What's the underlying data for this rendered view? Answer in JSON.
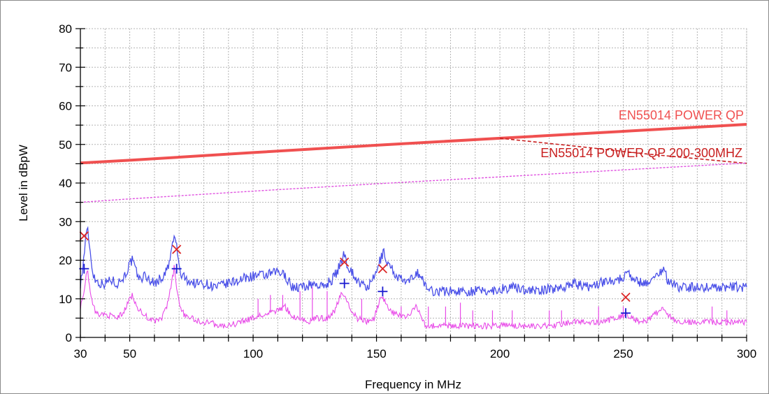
{
  "chart_data": {
    "type": "line",
    "xlabel": "Frequency in MHz",
    "ylabel": "Level in dBpW",
    "xlim": [
      30,
      300
    ],
    "ylim": [
      0,
      80
    ],
    "x_ticks": [
      30,
      50,
      100,
      150,
      200,
      250,
      300
    ],
    "y_ticks": [
      0,
      10,
      20,
      30,
      40,
      50,
      60,
      70,
      80
    ],
    "grid": true,
    "limit_lines": [
      {
        "name": "EN55014 POWER QP",
        "color": "#f05050",
        "style": "solid",
        "points": [
          [
            30,
            45.2
          ],
          [
            50,
            45.9
          ],
          [
            100,
            47.9
          ],
          [
            150,
            49.8
          ],
          [
            200,
            51.6
          ],
          [
            250,
            53.4
          ],
          [
            300,
            55.2
          ]
        ]
      },
      {
        "name": "EN55014 POWER QP 200-300MHZ",
        "color": "#c81e1e",
        "style": "dashed",
        "points": [
          [
            200,
            51.6
          ],
          [
            230,
            49.6
          ],
          [
            260,
            47.5
          ],
          [
            300,
            45.1
          ]
        ]
      },
      {
        "name": "",
        "color": "#e050e0",
        "style": "dotted",
        "points": [
          [
            30,
            35.0
          ],
          [
            50,
            35.9
          ],
          [
            100,
            37.9
          ],
          [
            150,
            39.8
          ],
          [
            200,
            41.6
          ],
          [
            250,
            43.4
          ],
          [
            300,
            45.2
          ]
        ]
      }
    ],
    "series": [
      {
        "color": "#4a50e8",
        "points": [
          [
            30,
            14
          ],
          [
            31,
            18
          ],
          [
            32,
            25
          ],
          [
            33,
            28
          ],
          [
            34,
            22
          ],
          [
            35,
            17
          ],
          [
            36,
            15
          ],
          [
            38,
            14
          ],
          [
            40,
            14
          ],
          [
            42,
            15
          ],
          [
            45,
            14
          ],
          [
            48,
            16
          ],
          [
            50,
            19
          ],
          [
            51,
            20
          ],
          [
            52,
            18
          ],
          [
            54,
            15
          ],
          [
            56,
            16
          ],
          [
            58,
            15
          ],
          [
            60,
            14
          ],
          [
            62,
            15
          ],
          [
            64,
            16
          ],
          [
            66,
            19
          ],
          [
            67,
            23
          ],
          [
            68,
            26
          ],
          [
            69,
            24
          ],
          [
            70,
            18
          ],
          [
            71,
            16
          ],
          [
            73,
            15
          ],
          [
            76,
            14
          ],
          [
            80,
            14
          ],
          [
            85,
            13
          ],
          [
            90,
            14
          ],
          [
            95,
            15
          ],
          [
            100,
            16
          ],
          [
            105,
            16
          ],
          [
            110,
            17
          ],
          [
            113,
            16
          ],
          [
            116,
            13
          ],
          [
            120,
            13
          ],
          [
            125,
            14
          ],
          [
            128,
            13
          ],
          [
            132,
            15
          ],
          [
            134,
            17
          ],
          [
            136,
            20
          ],
          [
            137,
            22
          ],
          [
            138,
            19
          ],
          [
            140,
            17
          ],
          [
            143,
            14
          ],
          [
            146,
            13
          ],
          [
            148,
            14
          ],
          [
            150,
            17
          ],
          [
            152,
            21
          ],
          [
            153,
            22
          ],
          [
            154,
            20
          ],
          [
            156,
            18
          ],
          [
            158,
            16
          ],
          [
            160,
            15
          ],
          [
            163,
            14
          ],
          [
            166,
            17
          ],
          [
            168,
            16
          ],
          [
            170,
            13
          ],
          [
            173,
            12
          ],
          [
            178,
            12
          ],
          [
            185,
            12
          ],
          [
            195,
            12
          ],
          [
            205,
            13
          ],
          [
            215,
            12
          ],
          [
            225,
            13
          ],
          [
            230,
            14
          ],
          [
            235,
            13
          ],
          [
            240,
            14
          ],
          [
            245,
            15
          ],
          [
            250,
            15
          ],
          [
            251,
            18
          ],
          [
            252,
            17
          ],
          [
            254,
            15
          ],
          [
            258,
            14
          ],
          [
            262,
            15
          ],
          [
            265,
            17
          ],
          [
            266,
            18
          ],
          [
            268,
            15
          ],
          [
            272,
            13
          ],
          [
            280,
            13
          ],
          [
            290,
            13
          ],
          [
            300,
            13
          ]
        ]
      },
      {
        "color": "#e84ae8",
        "points": [
          [
            30,
            8
          ],
          [
            31,
            10
          ],
          [
            32,
            15
          ],
          [
            33,
            17
          ],
          [
            34,
            12
          ],
          [
            35,
            8
          ],
          [
            37,
            6
          ],
          [
            40,
            6
          ],
          [
            45,
            5
          ],
          [
            48,
            7
          ],
          [
            50,
            10
          ],
          [
            51,
            11
          ],
          [
            53,
            8
          ],
          [
            55,
            6
          ],
          [
            58,
            5
          ],
          [
            60,
            4
          ],
          [
            63,
            5
          ],
          [
            65,
            8
          ],
          [
            67,
            14
          ],
          [
            68,
            18
          ],
          [
            69,
            13
          ],
          [
            70,
            9
          ],
          [
            72,
            6
          ],
          [
            75,
            5
          ],
          [
            78,
            4
          ],
          [
            82,
            4
          ],
          [
            86,
            3
          ],
          [
            90,
            3
          ],
          [
            95,
            4
          ],
          [
            100,
            5
          ],
          [
            105,
            6
          ],
          [
            110,
            7
          ],
          [
            113,
            8
          ],
          [
            115,
            6
          ],
          [
            118,
            5
          ],
          [
            122,
            4
          ],
          [
            126,
            5
          ],
          [
            130,
            5
          ],
          [
            133,
            7
          ],
          [
            135,
            10
          ],
          [
            136,
            12
          ],
          [
            137,
            11
          ],
          [
            139,
            8
          ],
          [
            142,
            5
          ],
          [
            146,
            4
          ],
          [
            149,
            5
          ],
          [
            151,
            9
          ],
          [
            152,
            11
          ],
          [
            153,
            10
          ],
          [
            155,
            7
          ],
          [
            158,
            6
          ],
          [
            162,
            5
          ],
          [
            165,
            7
          ],
          [
            166,
            8
          ],
          [
            168,
            6
          ],
          [
            170,
            3
          ],
          [
            173,
            3
          ],
          [
            180,
            3
          ],
          [
            190,
            3
          ],
          [
            200,
            3
          ],
          [
            210,
            3
          ],
          [
            220,
            3
          ],
          [
            230,
            4
          ],
          [
            240,
            4
          ],
          [
            248,
            5
          ],
          [
            251,
            6
          ],
          [
            253,
            5
          ],
          [
            258,
            4
          ],
          [
            263,
            6
          ],
          [
            266,
            8
          ],
          [
            268,
            6
          ],
          [
            272,
            4
          ],
          [
            280,
            4
          ],
          [
            290,
            4
          ],
          [
            300,
            4
          ]
        ]
      }
    ],
    "spike_lines": {
      "color": "#e84ae8",
      "spikes": [
        [
          102,
          10
        ],
        [
          107,
          11
        ],
        [
          112,
          11
        ],
        [
          119,
          12
        ],
        [
          124,
          13
        ],
        [
          130,
          12
        ],
        [
          144,
          10
        ],
        [
          160,
          8
        ],
        [
          171,
          8
        ],
        [
          178,
          8
        ],
        [
          184,
          9
        ],
        [
          189,
          7
        ],
        [
          197,
          7
        ],
        [
          205,
          7
        ],
        [
          220,
          7
        ],
        [
          225,
          7
        ],
        [
          240,
          8
        ],
        [
          250,
          8
        ],
        [
          286,
          8
        ],
        [
          292,
          7
        ]
      ]
    },
    "markers_x": {
      "color": "#dc2828",
      "symbol": "x",
      "points": [
        [
          31.5,
          26.3
        ],
        [
          69,
          22.8
        ],
        [
          137,
          19.5
        ],
        [
          152.5,
          17.8
        ],
        [
          251,
          10.4
        ]
      ]
    },
    "markers_plus": {
      "color": "#1a1ad0",
      "symbol": "+",
      "points": [
        [
          31.5,
          17.8
        ],
        [
          69,
          17.8
        ],
        [
          137,
          14.0
        ],
        [
          152.5,
          11.9
        ],
        [
          251,
          6.3
        ]
      ]
    }
  }
}
